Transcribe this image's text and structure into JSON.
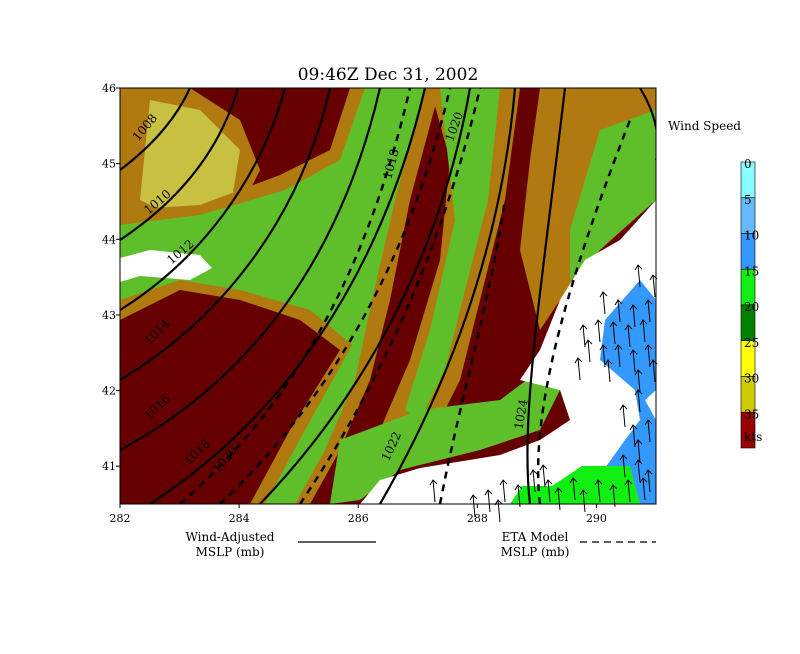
{
  "title": "09:46Z Dec 31, 2002",
  "map": {
    "xlim": [
      282,
      291
    ],
    "ylim": [
      40.5,
      46
    ],
    "xticks": [
      282,
      284,
      286,
      288,
      290
    ],
    "yticks": [
      41,
      42,
      43,
      44,
      45,
      46
    ]
  },
  "colorbar": {
    "title": "Wind Speed",
    "levels": [
      0,
      5,
      10,
      15,
      20,
      25,
      30,
      35
    ],
    "colors": [
      "#88ffff",
      "#66bbff",
      "#3399ff",
      "#11ee11",
      "#008000",
      "#ffff00",
      "#cccc00",
      "#990000"
    ],
    "unit": "kts"
  },
  "legend": [
    {
      "lines": [
        "Wind-Adjusted",
        "MSLP (mb)"
      ],
      "style": "solid"
    },
    {
      "lines": [
        "ETA Model",
        "MSLP (mb)"
      ],
      "style": "dashed"
    }
  ],
  "contour_labels": [
    "1008",
    "1010",
    "1012",
    "1014",
    "1016",
    "1018",
    "1020",
    "1022",
    "1024",
    "1018",
    "1020"
  ]
}
